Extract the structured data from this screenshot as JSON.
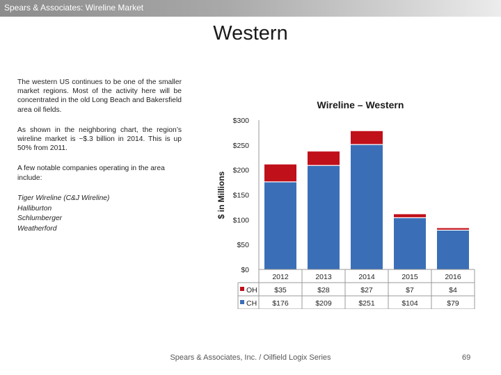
{
  "header": {
    "title": "Spears & Associates:  Wireline Market"
  },
  "slide": {
    "title": "Western"
  },
  "left_text": {
    "p1": "The western US continues to be one of the smaller market regions.  Most of the activity here will be concentrated in the old Long Beach and Bakersfield area oil fields.",
    "p2": "As shown in the neighboring chart, the region’s wireline market is ~$.3 billion in 2014.  This is up 50% from 2011.",
    "p3": "A few notable companies operating in the area include:",
    "companies": [
      "Tiger Wireline (C&J Wireline)",
      "Halliburton",
      "Schlumberger",
      "Weatherford"
    ]
  },
  "chart_data": {
    "type": "bar",
    "stacked": true,
    "title": "Wireline – Western",
    "ylabel": "$ in Millions",
    "ylim": [
      0,
      300
    ],
    "y_ticks": [
      "$0",
      "$50",
      "$100",
      "$150",
      "$200",
      "$250",
      "$300"
    ],
    "y_tick_values": [
      0,
      50,
      100,
      150,
      200,
      250,
      300
    ],
    "categories": [
      "2012",
      "2013",
      "2014",
      "2015",
      "2016"
    ],
    "series": [
      {
        "name": "OH",
        "color": "#c0101a",
        "values": [
          35,
          28,
          27,
          7,
          4
        ],
        "labels": [
          "$35",
          "$28",
          "$27",
          "$7",
          "$4"
        ]
      },
      {
        "name": "CH",
        "color": "#3a6fb7",
        "values": [
          176,
          209,
          251,
          104,
          79
        ],
        "labels": [
          "$176",
          "$209",
          "$251",
          "$104",
          "$79"
        ]
      }
    ],
    "legend": "data-table-bottom",
    "grid": false
  },
  "footer": {
    "text": "Spears & Associates, Inc. / Oilfield Logix Series",
    "page": "69"
  }
}
